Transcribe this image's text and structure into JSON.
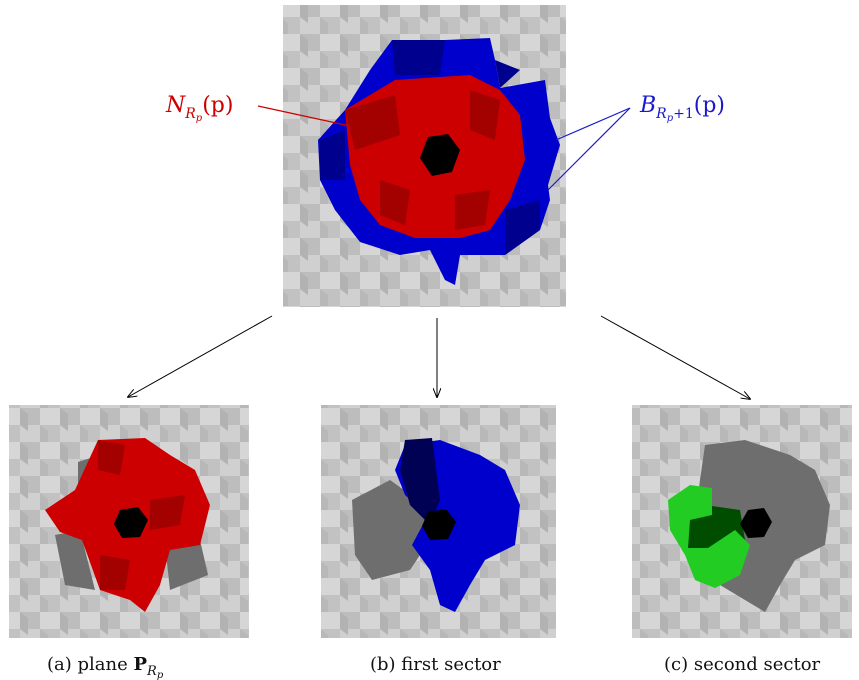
{
  "figure": {
    "top_panel": {
      "label_left": {
        "main": "N",
        "sub": "R",
        "subsub": "p",
        "arg": "(p)"
      },
      "label_right": {
        "main": "B",
        "sub": "R",
        "subsub": "p",
        "subplus": "+1",
        "arg": "(p)"
      }
    },
    "captions": [
      {
        "prefix": "(a) plane ",
        "bold": "P",
        "sub": "R",
        "subsub": "p"
      },
      {
        "prefix": "(b) first sector",
        "bold": "",
        "sub": "",
        "subsub": ""
      },
      {
        "prefix": "(c) second sector",
        "bold": "",
        "sub": "",
        "subsub": ""
      }
    ],
    "colors": {
      "neighborhood_red": "#cc0000",
      "boundary_blue": "#0000cc",
      "center_black": "#000000",
      "sector_green": "#22cc22",
      "sector_dark_green": "#004d00",
      "gray_voxels": "#6e6e6e",
      "background_voxels": "#c8c8c8",
      "label_red": "#cc0000",
      "label_blue": "#1a1acc"
    }
  }
}
